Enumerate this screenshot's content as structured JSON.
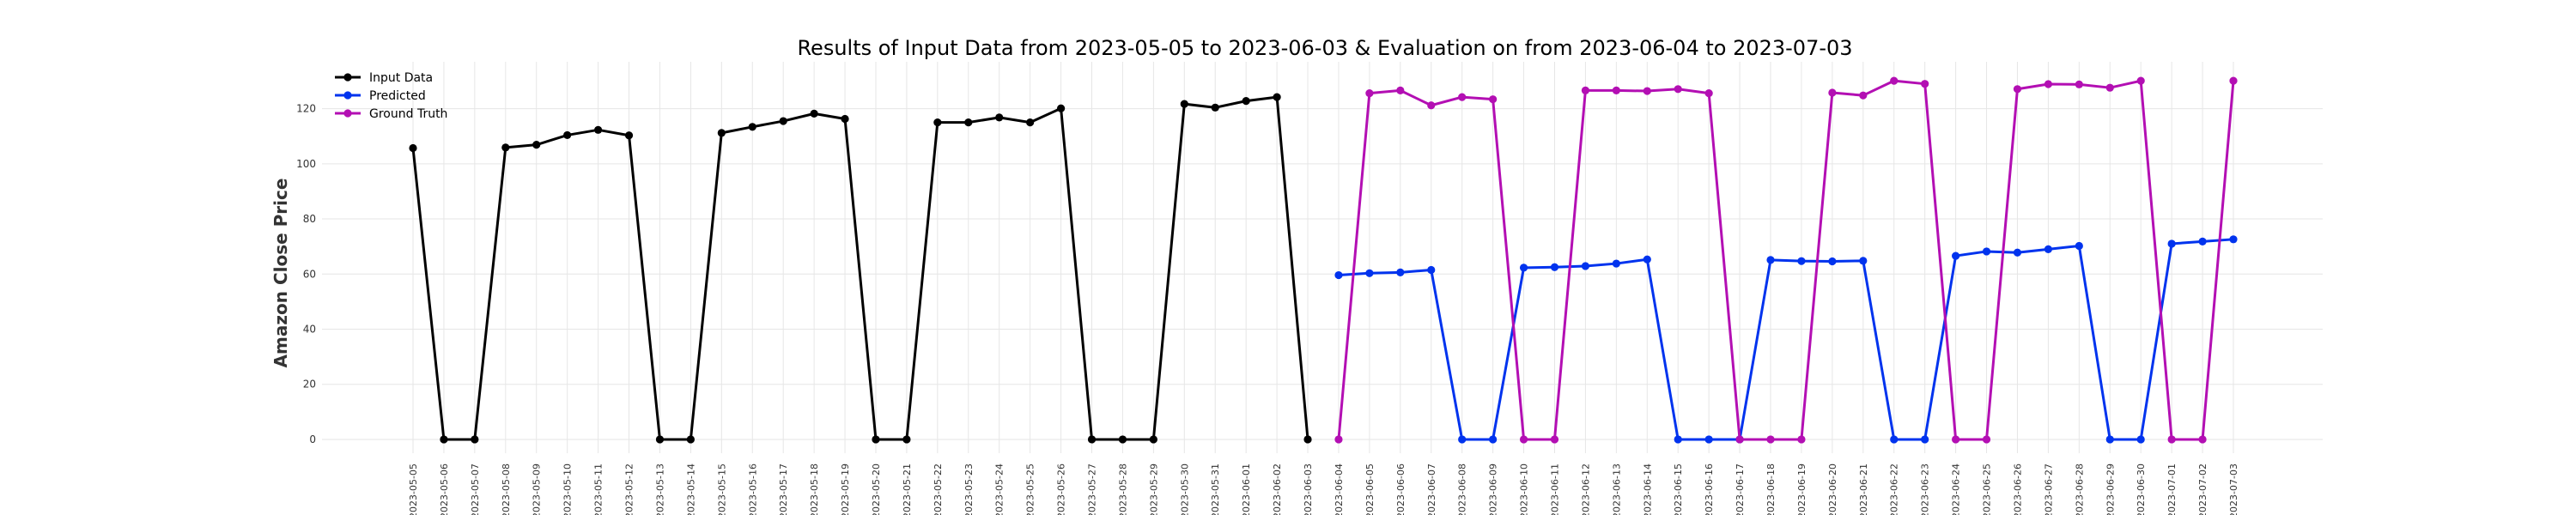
{
  "chart_data": {
    "type": "line",
    "title": "Results of Input Data from 2023-05-05 to 2023-06-03 & Evaluation on from 2023-06-04 to 2023-07-03",
    "xlabel": "",
    "ylabel": "Amazon Close Price",
    "ylim": [
      -5,
      137
    ],
    "yticks": [
      0,
      20,
      40,
      60,
      80,
      100,
      120
    ],
    "grid": true,
    "legend_placement": "top-left",
    "x_tick_labels": [
      "2023-05-05",
      "2023-05-06",
      "2023-05-07",
      "2023-05-08",
      "2023-05-09",
      "2023-05-10",
      "2023-05-11",
      "2023-05-12",
      "2023-05-13",
      "2023-05-14",
      "2023-05-15",
      "2023-05-16",
      "2023-05-17",
      "2023-05-18",
      "2023-05-19",
      "2023-05-20",
      "2023-05-21",
      "2023-05-22",
      "2023-05-23",
      "2023-05-24",
      "2023-05-25",
      "2023-05-26",
      "2023-05-27",
      "2023-05-28",
      "2023-05-29",
      "2023-05-30",
      "2023-05-31",
      "2023-06-01",
      "2023-06-02",
      "2023-06-03",
      "2023-06-04",
      "2023-06-05",
      "2023-06-06",
      "2023-06-07",
      "2023-06-08",
      "2023-06-09",
      "2023-06-10",
      "2023-06-11",
      "2023-06-12",
      "2023-06-13",
      "2023-06-14",
      "2023-06-15",
      "2023-06-16",
      "2023-06-17",
      "2023-06-18",
      "2023-06-19",
      "2023-06-20",
      "2023-06-21",
      "2023-06-22",
      "2023-06-23",
      "2023-06-24",
      "2023-06-25",
      "2023-06-26",
      "2023-06-27",
      "2023-06-28",
      "2023-06-29",
      "2023-06-30",
      "2023-07-01",
      "2023-07-02",
      "2023-07-03"
    ],
    "series": [
      {
        "name": "Input Data",
        "color": "#000000",
        "x": [
          "2023-05-05",
          "2023-05-06",
          "2023-05-07",
          "2023-05-08",
          "2023-05-09",
          "2023-05-10",
          "2023-05-11",
          "2023-05-12",
          "2023-05-13",
          "2023-05-14",
          "2023-05-15",
          "2023-05-16",
          "2023-05-17",
          "2023-05-18",
          "2023-05-19",
          "2023-05-20",
          "2023-05-21",
          "2023-05-22",
          "2023-05-23",
          "2023-05-24",
          "2023-05-25",
          "2023-05-26",
          "2023-05-27",
          "2023-05-28",
          "2023-05-29",
          "2023-05-30",
          "2023-05-31",
          "2023-06-01",
          "2023-06-02",
          "2023-06-03"
        ],
        "values": [
          105.7,
          0,
          0,
          105.9,
          106.9,
          110.4,
          112.3,
          110.3,
          0,
          0,
          111.2,
          113.4,
          115.5,
          118.2,
          116.3,
          0,
          0,
          115.0,
          115.0,
          116.8,
          115.0,
          120.1,
          0,
          0,
          0,
          121.7,
          120.4,
          122.8,
          124.2,
          0
        ]
      },
      {
        "name": "Predicted",
        "color": "#0033ee",
        "x": [
          "2023-06-04",
          "2023-06-05",
          "2023-06-06",
          "2023-06-07",
          "2023-06-08",
          "2023-06-09",
          "2023-06-10",
          "2023-06-11",
          "2023-06-12",
          "2023-06-13",
          "2023-06-14",
          "2023-06-15",
          "2023-06-16",
          "2023-06-17",
          "2023-06-18",
          "2023-06-19",
          "2023-06-20",
          "2023-06-21",
          "2023-06-22",
          "2023-06-23",
          "2023-06-24",
          "2023-06-25",
          "2023-06-26",
          "2023-06-27",
          "2023-06-28",
          "2023-06-29",
          "2023-06-30",
          "2023-07-01",
          "2023-07-02",
          "2023-07-03"
        ],
        "values": [
          59.6,
          60.3,
          60.6,
          61.5,
          0,
          0,
          62.3,
          62.5,
          62.9,
          63.8,
          65.3,
          0,
          0,
          0,
          65.1,
          64.7,
          64.6,
          64.8,
          0,
          0,
          66.6,
          68.2,
          67.8,
          69.0,
          70.2,
          0,
          0,
          71.0,
          71.8,
          72.6
        ]
      },
      {
        "name": "Ground Truth",
        "color": "#b30fb3",
        "x": [
          "2023-06-04",
          "2023-06-05",
          "2023-06-06",
          "2023-06-07",
          "2023-06-08",
          "2023-06-09",
          "2023-06-10",
          "2023-06-11",
          "2023-06-12",
          "2023-06-13",
          "2023-06-14",
          "2023-06-15",
          "2023-06-16",
          "2023-06-17",
          "2023-06-18",
          "2023-06-19",
          "2023-06-20",
          "2023-06-21",
          "2023-06-22",
          "2023-06-23",
          "2023-06-24",
          "2023-06-25",
          "2023-06-26",
          "2023-06-27",
          "2023-06-28",
          "2023-06-29",
          "2023-06-30",
          "2023-07-01",
          "2023-07-02",
          "2023-07-03"
        ],
        "values": [
          0,
          125.6,
          126.6,
          121.2,
          124.2,
          123.4,
          0,
          0,
          126.6,
          126.6,
          126.4,
          127.1,
          125.6,
          0,
          0,
          0,
          125.8,
          124.8,
          130.1,
          129.0,
          0,
          0,
          127.1,
          128.9,
          128.8,
          127.6,
          130.1,
          0,
          0,
          130.1
        ]
      }
    ]
  }
}
